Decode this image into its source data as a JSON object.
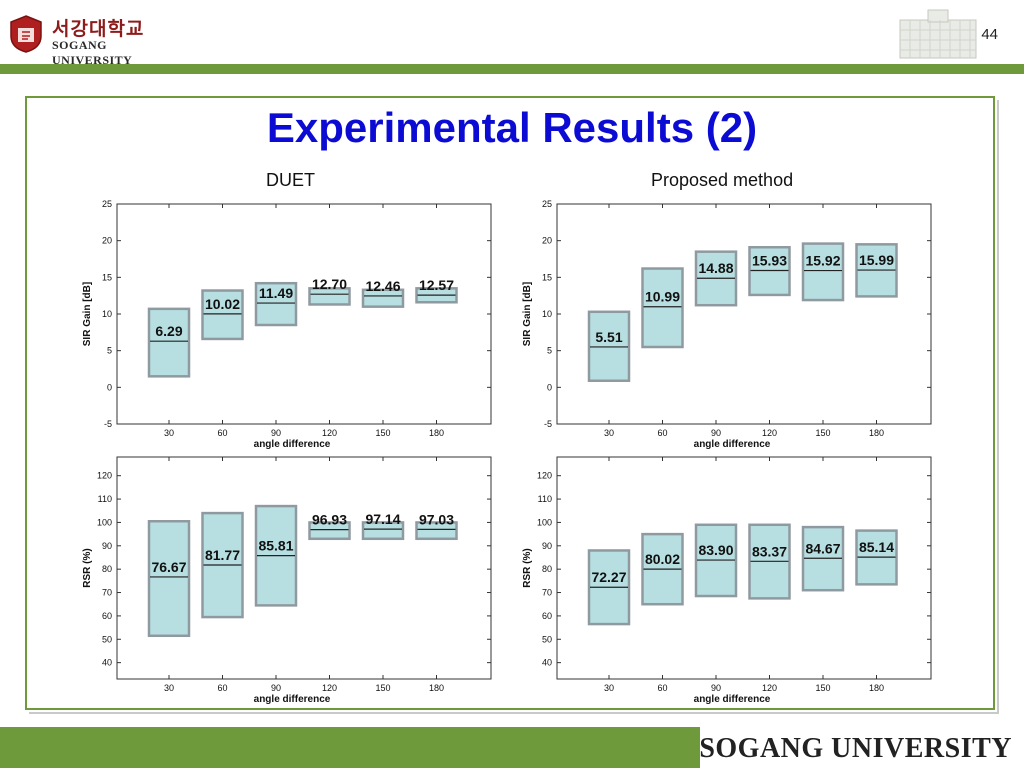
{
  "header": {
    "logo_korean": "서강대학교",
    "logo_english": "SOGANG UNIVERSITY",
    "page_number": "44"
  },
  "title": "Experimental Results (2)",
  "column_labels": {
    "left": "DUET",
    "right": "Proposed method"
  },
  "footer": {
    "name": "SOGANG UNIVERSITY"
  },
  "colors": {
    "accent_green": "#6e9a3b",
    "title_blue": "#0b0bd4",
    "box_fill": "#b7dfe1",
    "box_stroke": "#8f9aa0"
  },
  "chart_data": [
    {
      "type": "box",
      "panel": "DUET",
      "xlabel": "angle difference",
      "ylabel": "SIR Gain [dB]",
      "ylim": [
        -5,
        25
      ],
      "yticks": [
        -5,
        0,
        5,
        10,
        15,
        20,
        25
      ],
      "categories": [
        "30",
        "60",
        "90",
        "120",
        "150",
        "180"
      ],
      "boxes": [
        {
          "low": 1.5,
          "high": 10.7,
          "median": 6.29,
          "label": "6.29"
        },
        {
          "low": 6.6,
          "high": 13.2,
          "median": 10.02,
          "label": "10.02"
        },
        {
          "low": 8.5,
          "high": 14.2,
          "median": 11.49,
          "label": "11.49"
        },
        {
          "low": 11.3,
          "high": 13.5,
          "median": 12.7,
          "label": "12.70"
        },
        {
          "low": 11.0,
          "high": 13.3,
          "median": 12.46,
          "label": "12.46"
        },
        {
          "low": 11.6,
          "high": 13.5,
          "median": 12.57,
          "label": "12.57"
        }
      ]
    },
    {
      "type": "box",
      "panel": "Proposed method",
      "xlabel": "angle difference",
      "ylabel": "SIR Gain [dB]",
      "ylim": [
        -5,
        25
      ],
      "yticks": [
        -5,
        0,
        5,
        10,
        15,
        20,
        25
      ],
      "categories": [
        "30",
        "60",
        "90",
        "120",
        "150",
        "180"
      ],
      "boxes": [
        {
          "low": 0.9,
          "high": 10.3,
          "median": 5.51,
          "label": "5.51"
        },
        {
          "low": 5.5,
          "high": 16.2,
          "median": 10.99,
          "label": "10.99"
        },
        {
          "low": 11.2,
          "high": 18.5,
          "median": 14.88,
          "label": "14.88"
        },
        {
          "low": 12.6,
          "high": 19.1,
          "median": 15.93,
          "label": "15.93"
        },
        {
          "low": 11.9,
          "high": 19.6,
          "median": 15.92,
          "label": "15.92"
        },
        {
          "low": 12.4,
          "high": 19.5,
          "median": 15.99,
          "label": "15.99"
        }
      ]
    },
    {
      "type": "box",
      "panel": "DUET",
      "xlabel": "angle difference",
      "ylabel": "RSR (%)",
      "ylim": [
        33,
        128
      ],
      "yticks": [
        40,
        50,
        60,
        70,
        80,
        90,
        100,
        110,
        120
      ],
      "categories": [
        "30",
        "60",
        "90",
        "120",
        "150",
        "180"
      ],
      "boxes": [
        {
          "low": 51.5,
          "high": 100.5,
          "median": 76.67,
          "label": "76.67"
        },
        {
          "low": 59.5,
          "high": 104.0,
          "median": 81.77,
          "label": "81.77"
        },
        {
          "low": 64.5,
          "high": 107.0,
          "median": 85.81,
          "label": "85.81"
        },
        {
          "low": 93.0,
          "high": 100.0,
          "median": 96.93,
          "label": "96.93"
        },
        {
          "low": 93.0,
          "high": 100.0,
          "median": 97.14,
          "label": "97.14"
        },
        {
          "low": 93.0,
          "high": 100.0,
          "median": 97.03,
          "label": "97.03"
        }
      ]
    },
    {
      "type": "box",
      "panel": "Proposed method",
      "xlabel": "angle difference",
      "ylabel": "RSR (%)",
      "ylim": [
        33,
        128
      ],
      "yticks": [
        40,
        50,
        60,
        70,
        80,
        90,
        100,
        110,
        120
      ],
      "categories": [
        "30",
        "60",
        "90",
        "120",
        "150",
        "180"
      ],
      "boxes": [
        {
          "low": 56.5,
          "high": 88.0,
          "median": 72.27,
          "label": "72.27"
        },
        {
          "low": 65.0,
          "high": 95.0,
          "median": 80.02,
          "label": "80.02"
        },
        {
          "low": 68.5,
          "high": 99.0,
          "median": 83.9,
          "label": "83.90"
        },
        {
          "low": 67.5,
          "high": 99.0,
          "median": 83.37,
          "label": "83.37"
        },
        {
          "low": 71.0,
          "high": 98.0,
          "median": 84.67,
          "label": "84.67"
        },
        {
          "low": 73.5,
          "high": 96.5,
          "median": 85.14,
          "label": "85.14"
        }
      ]
    }
  ]
}
